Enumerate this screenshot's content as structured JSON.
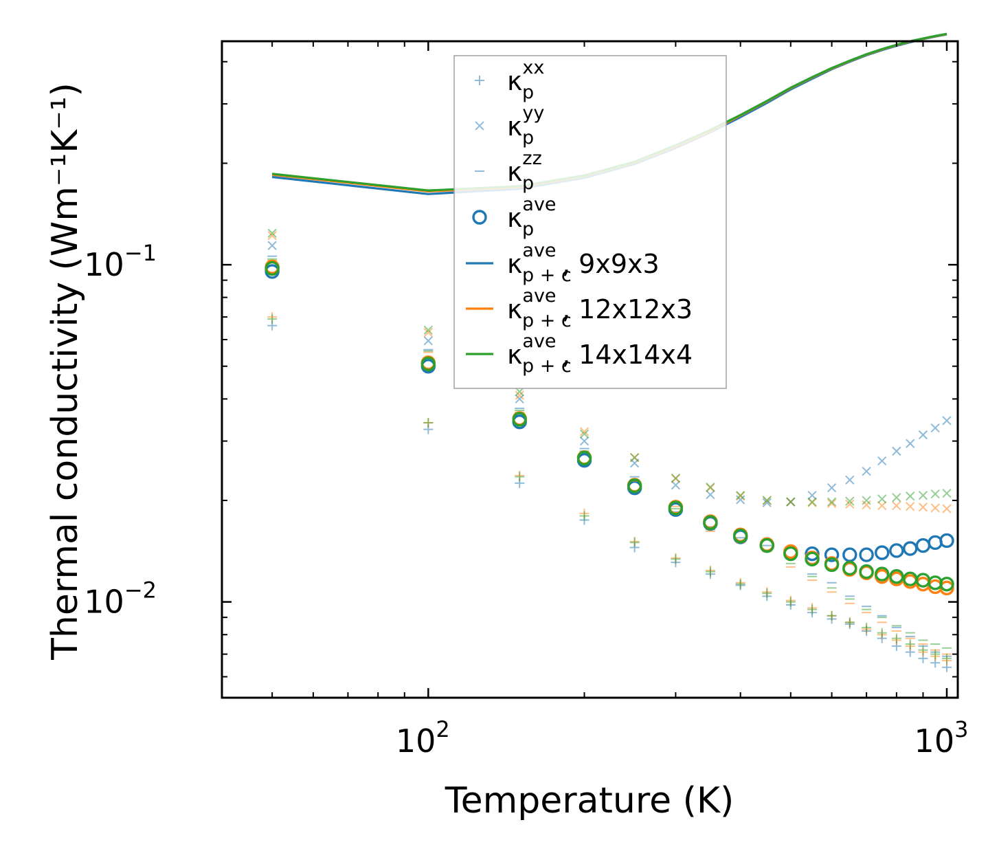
{
  "chart_data": {
    "type": "scatter",
    "xscale": "log",
    "yscale": "log",
    "xlim": [
      40,
      1050
    ],
    "ylim": [
      0.0052,
      0.46
    ],
    "xlabel": "Temperature (K)",
    "ylabel": "Thermal conductivity (Wm⁻¹K⁻¹)",
    "x_ticks": [
      {
        "value": 100,
        "base": "10",
        "exp": "2"
      },
      {
        "value": 1000,
        "base": "10",
        "exp": "3"
      }
    ],
    "y_ticks": [
      {
        "value": 0.01,
        "base": "10",
        "exp": "−2"
      },
      {
        "value": 0.1,
        "base": "10",
        "exp": "−1"
      }
    ],
    "x": [
      50,
      100,
      150,
      200,
      250,
      300,
      350,
      400,
      450,
      500,
      550,
      600,
      650,
      700,
      750,
      800,
      850,
      900,
      950,
      1000
    ],
    "colors": {
      "c9": "#1f77b4",
      "c12": "#ff7f0e",
      "c14": "#2ca02c"
    },
    "legend": [
      {
        "marker": "plus",
        "base": "κ",
        "sup": "xx",
        "sub": "p",
        "suffix": ""
      },
      {
        "marker": "cross",
        "base": "κ",
        "sup": "yy",
        "sub": "p",
        "suffix": ""
      },
      {
        "marker": "dash",
        "base": "κ",
        "sup": "zz",
        "sub": "p",
        "suffix": ""
      },
      {
        "marker": "circle",
        "base": "κ",
        "sup": "ave",
        "sub": "p",
        "suffix": ""
      },
      {
        "marker": "line",
        "color": "#1f77b4",
        "base": "κ",
        "sup": "ave",
        "sub": "p + c",
        "suffix": ", 9x9x3"
      },
      {
        "marker": "line",
        "color": "#ff7f0e",
        "base": "κ",
        "sup": "ave",
        "sub": "p + c",
        "suffix": ", 12x12x3"
      },
      {
        "marker": "line",
        "color": "#2ca02c",
        "base": "κ",
        "sup": "ave",
        "sub": "p + c",
        "suffix": ", 14x14x4"
      }
    ],
    "series": [
      {
        "name": "9x9x3",
        "color": "#1f77b4",
        "kxx": [
          0.066,
          0.0325,
          0.0225,
          0.0175,
          0.0145,
          0.0131,
          0.0121,
          0.0112,
          0.0104,
          0.0098,
          0.0093,
          0.0089,
          0.0086,
          0.0082,
          0.0078,
          0.0074,
          0.0071,
          0.0068,
          0.0066,
          0.0064
        ],
        "kyy": [
          0.114,
          0.0595,
          0.04,
          0.03,
          0.0258,
          0.0222,
          0.0208,
          0.0201,
          0.0197,
          0.0198,
          0.0207,
          0.0218,
          0.023,
          0.0244,
          0.0262,
          0.028,
          0.0295,
          0.0313,
          0.0328,
          0.0345
        ],
        "kzz": [
          0.106,
          0.056,
          0.0375,
          0.0285,
          0.0235,
          0.0185,
          0.0167,
          0.0155,
          0.0147,
          0.0135,
          0.0121,
          0.0114,
          0.0104,
          0.0097,
          0.0091,
          0.0084,
          0.0079,
          0.0074,
          0.0071,
          0.0069
        ],
        "kave": [
          0.0955,
          0.05,
          0.0342,
          0.0263,
          0.0218,
          0.0188,
          0.0171,
          0.0156,
          0.0147,
          0.014,
          0.0139,
          0.0138,
          0.0138,
          0.0138,
          0.014,
          0.0142,
          0.0144,
          0.0147,
          0.015,
          0.0152
        ],
        "line": [
          0.182,
          0.162,
          0.168,
          0.181,
          0.199,
          0.222,
          0.247,
          0.274,
          0.302,
          0.331,
          0.356,
          0.38,
          0.4,
          0.418,
          0.433,
          0.446,
          0.457,
          0.467,
          0.475,
          0.482
        ]
      },
      {
        "name": "12x12x3",
        "color": "#ff7f0e",
        "kxx": [
          0.07,
          0.034,
          0.0237,
          0.0183,
          0.0151,
          0.0135,
          0.0124,
          0.0114,
          0.0107,
          0.0101,
          0.0096,
          0.0091,
          0.0087,
          0.0083,
          0.008,
          0.0077,
          0.0074,
          0.0071,
          0.0069,
          0.0067
        ],
        "kyy": [
          0.122,
          0.063,
          0.041,
          0.032,
          0.0268,
          0.0232,
          0.0218,
          0.0206,
          0.02,
          0.0198,
          0.0197,
          0.0196,
          0.0195,
          0.0194,
          0.0193,
          0.0193,
          0.0192,
          0.0191,
          0.019,
          0.0189
        ],
        "kzz": [
          0.103,
          0.055,
          0.0365,
          0.0278,
          0.0228,
          0.0192,
          0.0162,
          0.015,
          0.0141,
          0.0127,
          0.0116,
          0.0107,
          0.0099,
          0.0093,
          0.0087,
          0.0082,
          0.0078,
          0.0075,
          0.0072,
          0.007
        ],
        "kave": [
          0.0985,
          0.0512,
          0.035,
          0.0268,
          0.0222,
          0.0191,
          0.0173,
          0.0158,
          0.0148,
          0.0141,
          0.0135,
          0.013,
          0.0125,
          0.0122,
          0.0119,
          0.0117,
          0.0115,
          0.0113,
          0.0111,
          0.011
        ],
        "line": [
          0.185,
          0.165,
          0.17,
          0.183,
          0.201,
          0.224,
          0.249,
          0.277,
          0.305,
          0.334,
          0.359,
          0.382,
          0.402,
          0.42,
          0.435,
          0.448,
          0.459,
          0.468,
          0.476,
          0.483
        ]
      },
      {
        "name": "14x14x4",
        "color": "#2ca02c",
        "kxx": [
          0.069,
          0.034,
          0.0235,
          0.018,
          0.015,
          0.0134,
          0.0123,
          0.0113,
          0.0106,
          0.01,
          0.0095,
          0.0091,
          0.0087,
          0.0084,
          0.0081,
          0.0078,
          0.0075,
          0.0072,
          0.007,
          0.0068
        ],
        "kyy": [
          0.124,
          0.064,
          0.042,
          0.0315,
          0.0268,
          0.0233,
          0.0219,
          0.0207,
          0.02,
          0.0198,
          0.0198,
          0.0198,
          0.0199,
          0.02,
          0.0202,
          0.0204,
          0.0206,
          0.0207,
          0.0209,
          0.021
        ],
        "kzz": [
          0.104,
          0.0555,
          0.037,
          0.028,
          0.023,
          0.0189,
          0.0164,
          0.0151,
          0.0142,
          0.013,
          0.0119,
          0.011,
          0.0102,
          0.0095,
          0.009,
          0.0085,
          0.0081,
          0.0077,
          0.0075,
          0.0073
        ],
        "kave": [
          0.0975,
          0.0508,
          0.0348,
          0.0267,
          0.0221,
          0.019,
          0.0172,
          0.0157,
          0.0147,
          0.0139,
          0.0134,
          0.0129,
          0.0126,
          0.0123,
          0.0121,
          0.0119,
          0.0117,
          0.0116,
          0.0114,
          0.0113
        ],
        "line": [
          0.186,
          0.166,
          0.171,
          0.184,
          0.202,
          0.226,
          0.251,
          0.278,
          0.306,
          0.335,
          0.36,
          0.383,
          0.403,
          0.421,
          0.436,
          0.449,
          0.46,
          0.469,
          0.477,
          0.484
        ]
      }
    ]
  }
}
